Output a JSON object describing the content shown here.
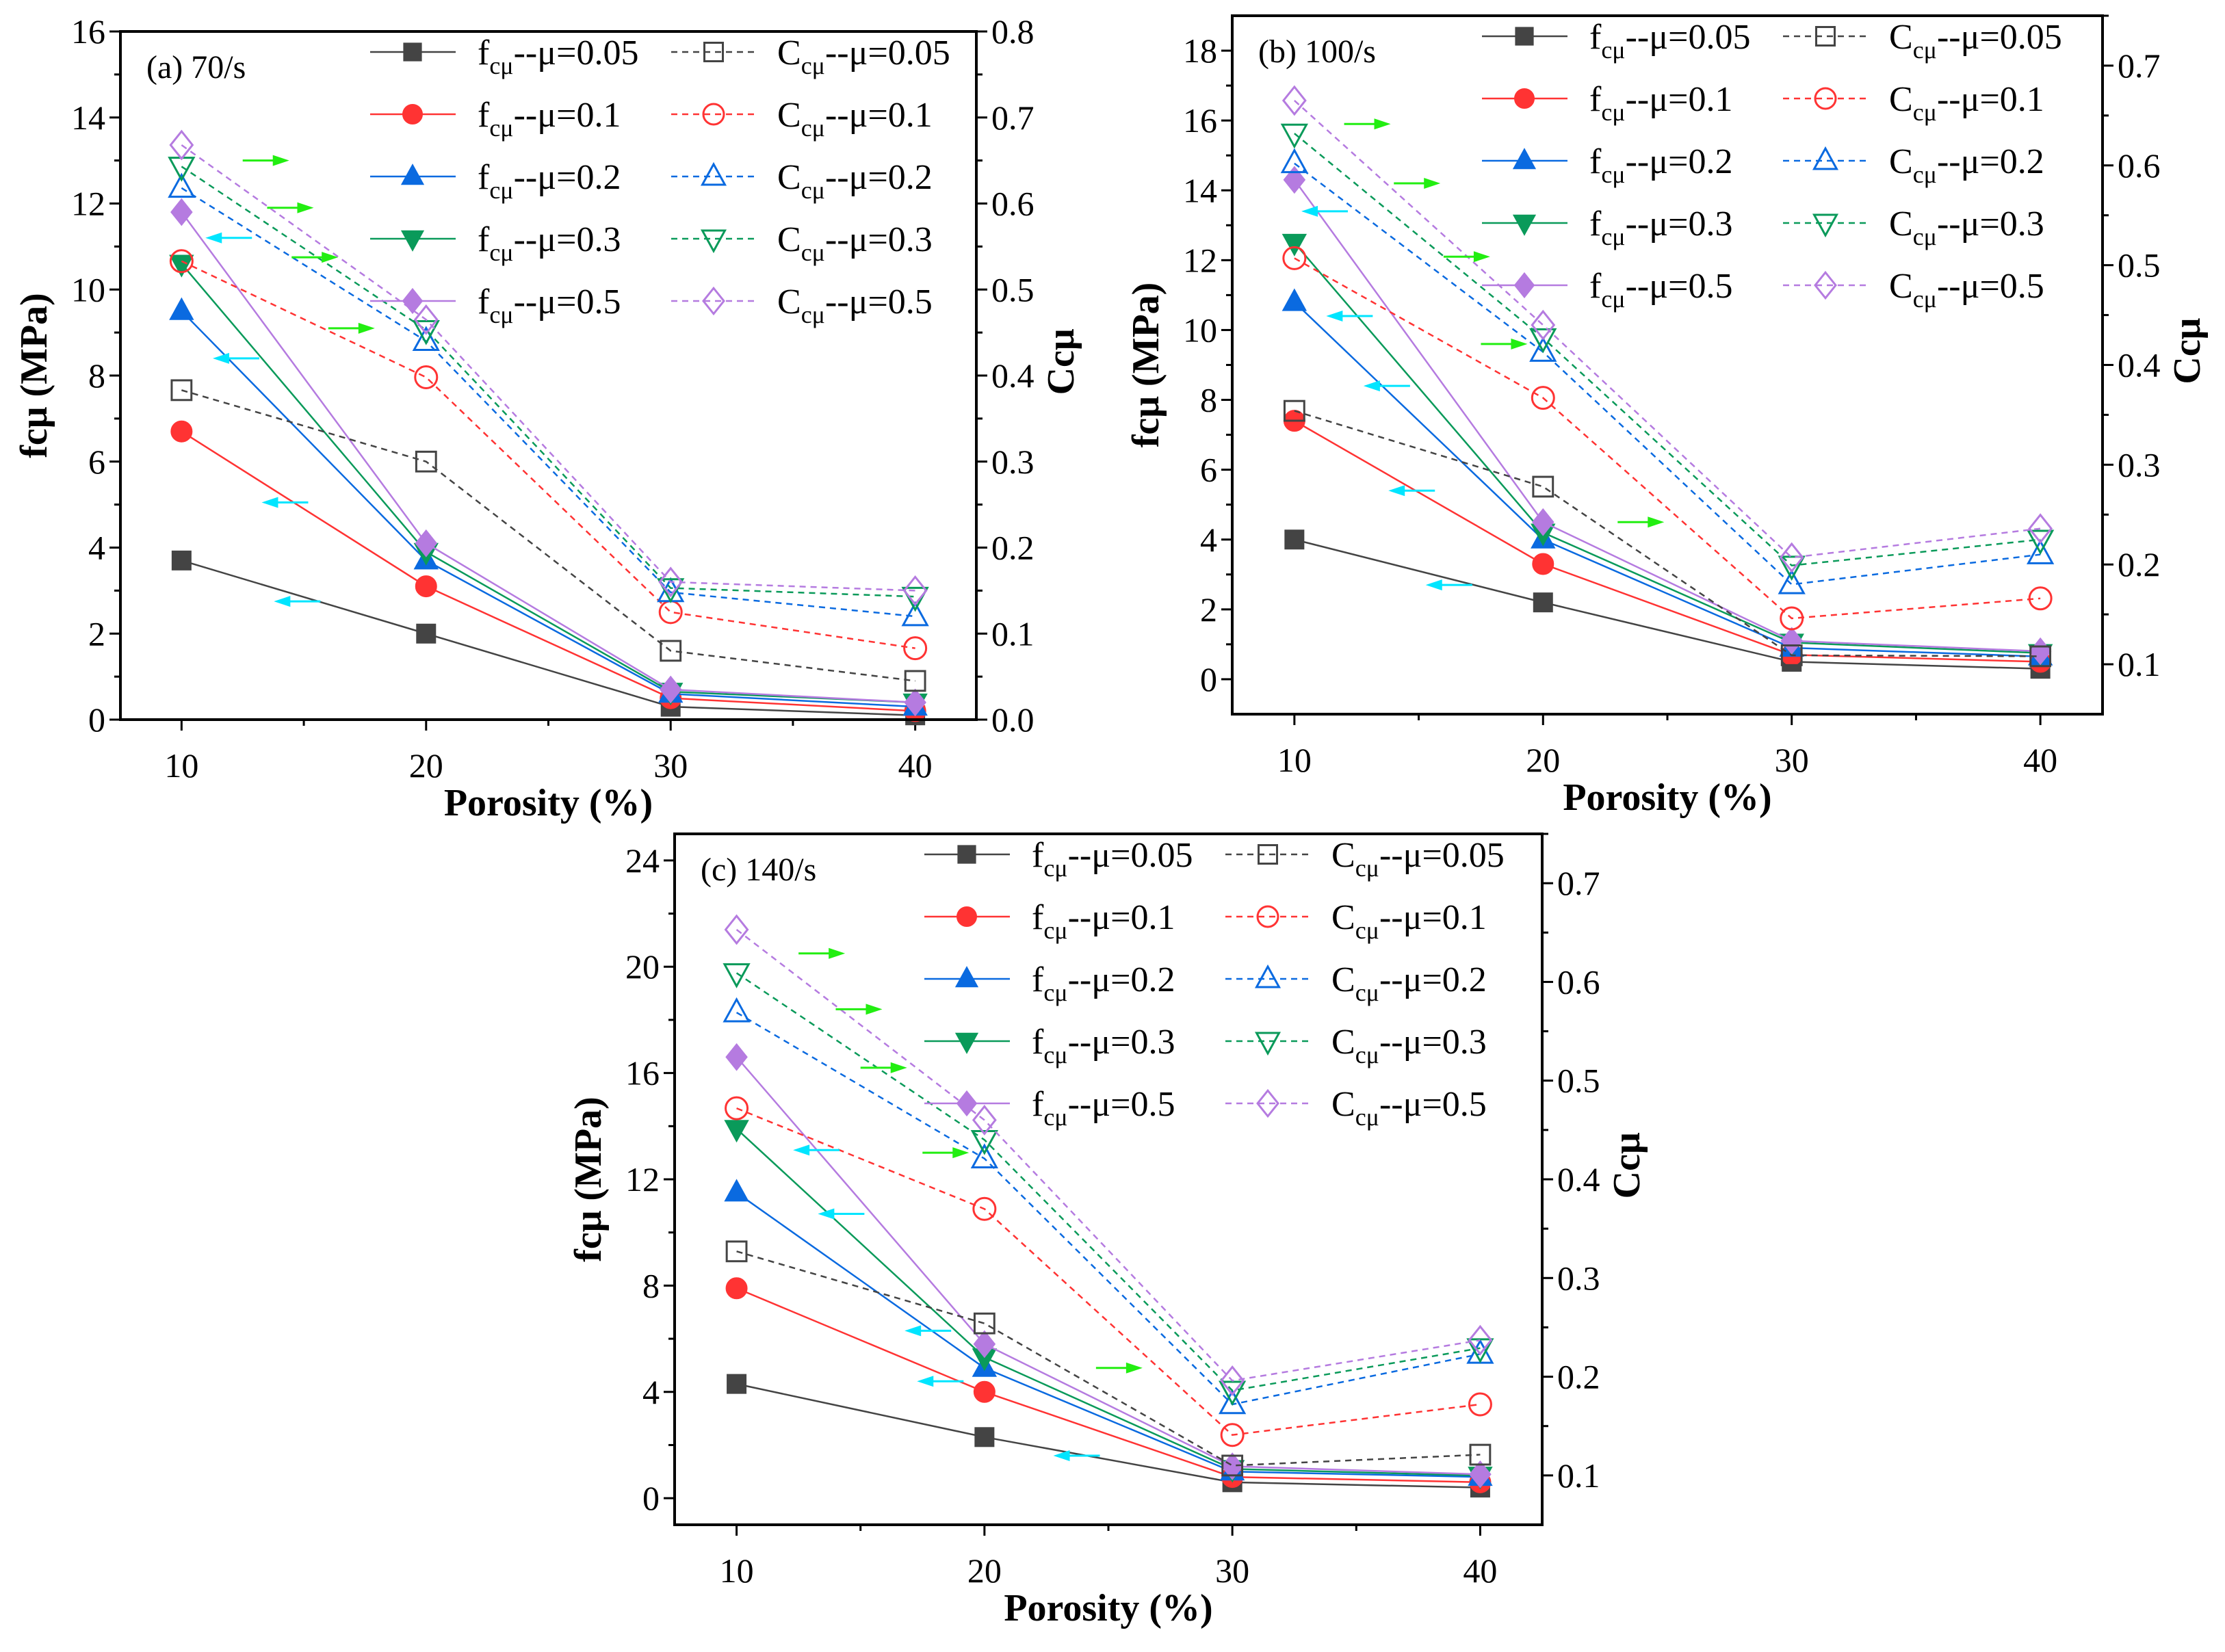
{
  "chart_data": [
    {
      "type": "line",
      "panel_label": "(a) 70/s",
      "xlabel": "Porosity (%)",
      "ylabel": "fcμ (MPa)",
      "y2label": "Ccμ",
      "x": [
        10,
        20,
        30,
        40
      ],
      "xticks": [
        "10",
        "20",
        "30",
        "40"
      ],
      "xlim": [
        7.5,
        42.5
      ],
      "ylim": [
        0,
        16
      ],
      "yticks": [
        "0",
        "2",
        "4",
        "6",
        "8",
        "10",
        "12",
        "14",
        "16"
      ],
      "y2lim": [
        0,
        0.8
      ],
      "y2ticks": [
        "0.0",
        "0.1",
        "0.2",
        "0.3",
        "0.4",
        "0.5",
        "0.6",
        "0.7",
        "0.8"
      ],
      "series": [
        {
          "name": "fcμ--μ=0.05",
          "axis": "left",
          "mu": "0.05",
          "values": [
            3.7,
            2.0,
            0.3,
            0.1
          ]
        },
        {
          "name": "fcμ--μ=0.1",
          "axis": "left",
          "mu": "0.1",
          "values": [
            6.7,
            3.1,
            0.5,
            0.2
          ]
        },
        {
          "name": "fcμ--μ=0.2",
          "axis": "left",
          "mu": "0.2",
          "values": [
            9.5,
            3.7,
            0.6,
            0.3
          ]
        },
        {
          "name": "fcμ--μ=0.3",
          "axis": "left",
          "mu": "0.3",
          "values": [
            10.6,
            3.9,
            0.65,
            0.4
          ]
        },
        {
          "name": "fcμ--μ=0.5",
          "axis": "left",
          "mu": "0.5",
          "values": [
            11.8,
            4.1,
            0.7,
            0.4
          ]
        },
        {
          "name": "Ccμ--μ=0.05",
          "axis": "right",
          "mu": "0.05",
          "values": [
            0.383,
            0.3,
            0.08,
            0.045
          ]
        },
        {
          "name": "Ccμ--μ=0.1",
          "axis": "right",
          "mu": "0.1",
          "values": [
            0.533,
            0.398,
            0.125,
            0.083
          ]
        },
        {
          "name": "Ccμ--μ=0.2",
          "axis": "right",
          "mu": "0.2",
          "values": [
            0.618,
            0.44,
            0.148,
            0.12
          ]
        },
        {
          "name": "Ccμ--μ=0.3",
          "axis": "right",
          "mu": "0.3",
          "values": [
            0.643,
            0.453,
            0.153,
            0.143
          ]
        },
        {
          "name": "Ccμ--μ=0.5",
          "axis": "right",
          "mu": "0.5",
          "values": [
            0.668,
            0.465,
            0.16,
            0.15
          ]
        }
      ]
    },
    {
      "type": "line",
      "panel_label": "(b) 100/s",
      "xlabel": "Porosity (%)",
      "ylabel": "fcμ (MPa)",
      "y2label": "Ccμ",
      "x": [
        10,
        20,
        30,
        40
      ],
      "xticks": [
        "10",
        "20",
        "30",
        "40"
      ],
      "xlim": [
        7.5,
        42.5
      ],
      "ylim": [
        -1,
        19
      ],
      "yticks": [
        "0",
        "2",
        "4",
        "6",
        "8",
        "10",
        "12",
        "14",
        "16",
        "18"
      ],
      "y2lim": [
        0.05,
        0.75
      ],
      "y2ticks": [
        "0.1",
        "0.2",
        "0.3",
        "0.4",
        "0.5",
        "0.6",
        "0.7"
      ],
      "series": [
        {
          "name": "fcμ--μ=0.05",
          "axis": "left",
          "mu": "0.05",
          "values": [
            4.0,
            2.2,
            0.5,
            0.3
          ]
        },
        {
          "name": "fcμ--μ=0.1",
          "axis": "left",
          "mu": "0.1",
          "values": [
            7.4,
            3.3,
            0.7,
            0.5
          ]
        },
        {
          "name": "fcμ--μ=0.2",
          "axis": "left",
          "mu": "0.2",
          "values": [
            10.8,
            4.0,
            0.9,
            0.65
          ]
        },
        {
          "name": "fcμ--μ=0.3",
          "axis": "left",
          "mu": "0.3",
          "values": [
            12.5,
            4.2,
            1.05,
            0.75
          ]
        },
        {
          "name": "fcμ--μ=0.5",
          "axis": "left",
          "mu": "0.5",
          "values": [
            14.3,
            4.5,
            1.1,
            0.8
          ]
        },
        {
          "name": "Ccμ--μ=0.05",
          "axis": "right",
          "mu": "0.05",
          "values": [
            0.354,
            0.278,
            0.109,
            0.108
          ]
        },
        {
          "name": "Ccμ--μ=0.1",
          "axis": "right",
          "mu": "0.1",
          "values": [
            0.507,
            0.367,
            0.146,
            0.166
          ]
        },
        {
          "name": "Ccμ--μ=0.2",
          "axis": "right",
          "mu": "0.2",
          "values": [
            0.602,
            0.413,
            0.18,
            0.21
          ]
        },
        {
          "name": "Ccμ--μ=0.3",
          "axis": "right",
          "mu": "0.3",
          "values": [
            0.632,
            0.427,
            0.199,
            0.225
          ]
        },
        {
          "name": "Ccμ--μ=0.5",
          "axis": "right",
          "mu": "0.5",
          "values": [
            0.665,
            0.44,
            0.207,
            0.236
          ]
        }
      ]
    },
    {
      "type": "line",
      "panel_label": "(c) 140/s",
      "xlabel": "Porosity (%)",
      "ylabel": "fcμ (MPa)",
      "y2label": "Ccμ",
      "x": [
        10,
        20,
        30,
        40
      ],
      "xticks": [
        "10",
        "20",
        "30",
        "40"
      ],
      "xlim": [
        7.5,
        42.5
      ],
      "ylim": [
        -1,
        25
      ],
      "yticks": [
        "0",
        "4",
        "8",
        "12",
        "16",
        "20",
        "24"
      ],
      "y2lim": [
        0.05,
        0.75
      ],
      "y2ticks": [
        "0.1",
        "0.2",
        "0.3",
        "0.4",
        "0.5",
        "0.6",
        "0.7"
      ],
      "series": [
        {
          "name": "fcμ--μ=0.05",
          "axis": "left",
          "mu": "0.05",
          "values": [
            4.3,
            2.3,
            0.6,
            0.4
          ]
        },
        {
          "name": "fcμ--μ=0.1",
          "axis": "left",
          "mu": "0.1",
          "values": [
            7.9,
            4.0,
            0.8,
            0.6
          ]
        },
        {
          "name": "fcμ--μ=0.2",
          "axis": "left",
          "mu": "0.2",
          "values": [
            11.5,
            4.9,
            1.0,
            0.8
          ]
        },
        {
          "name": "fcμ--μ=0.3",
          "axis": "left",
          "mu": "0.3",
          "values": [
            13.9,
            5.3,
            1.1,
            0.85
          ]
        },
        {
          "name": "fcμ--μ=0.5",
          "axis": "left",
          "mu": "0.5",
          "values": [
            16.6,
            5.8,
            1.2,
            0.9
          ]
        },
        {
          "name": "Ccμ--μ=0.05",
          "axis": "right",
          "mu": "0.05",
          "values": [
            0.327,
            0.254,
            0.11,
            0.121
          ]
        },
        {
          "name": "Ccμ--μ=0.1",
          "axis": "right",
          "mu": "0.1",
          "values": [
            0.472,
            0.37,
            0.141,
            0.172
          ]
        },
        {
          "name": "Ccμ--μ=0.2",
          "axis": "right",
          "mu": "0.2",
          "values": [
            0.569,
            0.421,
            0.172,
            0.223
          ]
        },
        {
          "name": "Ccμ--μ=0.3",
          "axis": "right",
          "mu": "0.3",
          "values": [
            0.609,
            0.44,
            0.186,
            0.229
          ]
        },
        {
          "name": "Ccμ--μ=0.5",
          "axis": "right",
          "mu": "0.5",
          "values": [
            0.653,
            0.46,
            0.196,
            0.237
          ]
        }
      ]
    }
  ],
  "legend_parts": {
    "f_main": "f",
    "c_main": "C",
    "sub": "cμ",
    "sep": "--μ="
  },
  "colors": {
    "mu_0.05": "#444444",
    "mu_0.1": "#ff3333",
    "mu_0.2": "#0a6ae0",
    "mu_0.3": "#0a9a5a",
    "mu_0.5": "#b57be0",
    "arrow_left": "#00e5ff",
    "arrow_right": "#22ee11"
  },
  "markers": {
    "mu_0.05": "square",
    "mu_0.1": "circle",
    "mu_0.2": "triangle-up",
    "mu_0.3": "triangle-down",
    "mu_0.5": "diamond"
  }
}
